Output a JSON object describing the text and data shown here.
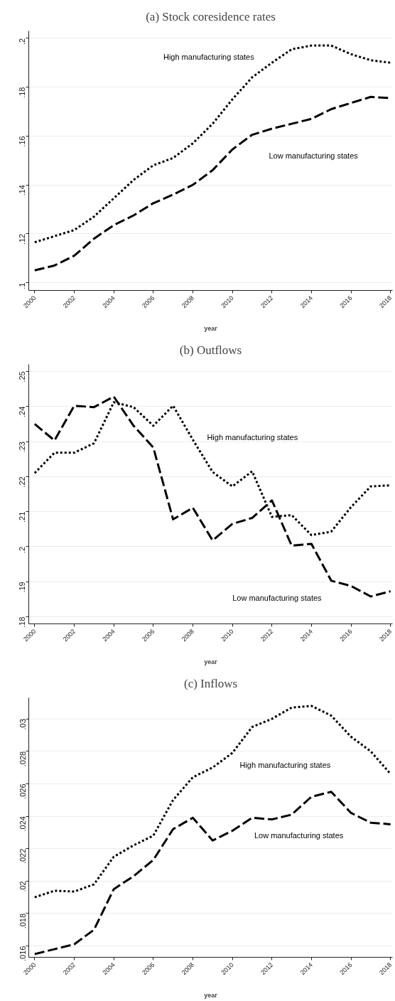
{
  "chart_data": [
    {
      "type": "line",
      "title": "(a) Stock coresidence rates",
      "xlabel": "year",
      "x": [
        2000,
        2001,
        2002,
        2003,
        2004,
        2005,
        2006,
        2007,
        2008,
        2009,
        2010,
        2011,
        2012,
        2013,
        2014,
        2015,
        2016,
        2017,
        2018
      ],
      "series": [
        {
          "name": "High manufacturing states",
          "color": "#000000",
          "line_style": "dotted",
          "values": [
            0.1165,
            0.119,
            0.1215,
            0.127,
            0.1345,
            0.142,
            0.148,
            0.151,
            0.157,
            0.165,
            0.175,
            0.184,
            0.19,
            0.1955,
            0.197,
            0.197,
            0.1935,
            0.191,
            0.19
          ]
        },
        {
          "name": "Low manufacturing states",
          "color": "#000000",
          "line_style": "dashed",
          "values": [
            0.105,
            0.107,
            0.111,
            0.118,
            0.1235,
            0.1275,
            0.1325,
            0.136,
            0.14,
            0.146,
            0.1545,
            0.1605,
            0.163,
            0.165,
            0.167,
            0.171,
            0.1735,
            0.176,
            0.1755
          ]
        }
      ],
      "xlim": [
        1999.7,
        2018.1
      ],
      "ylim": [
        0.0968,
        0.203
      ],
      "xticks": [
        2000,
        2002,
        2004,
        2006,
        2008,
        2010,
        2012,
        2014,
        2016,
        2018
      ],
      "yticks": [
        {
          "value": 0.1,
          "label": ".1"
        },
        {
          "value": 0.12,
          "label": ".12"
        },
        {
          "value": 0.14,
          "label": ".14"
        },
        {
          "value": 0.16,
          "label": ".16"
        },
        {
          "value": 0.18,
          "label": ".18"
        },
        {
          "value": 0.2,
          "label": ".2"
        }
      ],
      "grid": "y"
    },
    {
      "type": "line",
      "title": "(b) Outflows",
      "xlabel": "year",
      "x": [
        2000,
        2001,
        2002,
        2003,
        2004,
        2005,
        2006,
        2007,
        2008,
        2009,
        2010,
        2011,
        2012,
        2013,
        2014,
        2015,
        2016,
        2017,
        2018
      ],
      "series": [
        {
          "name": "High manufacturing states",
          "color": "#000000",
          "line_style": "dotted",
          "values": [
            0.221,
            0.2268,
            0.2268,
            0.2295,
            0.2412,
            0.2398,
            0.2345,
            0.2402,
            0.2305,
            0.2213,
            0.2172,
            0.2215,
            0.2085,
            0.209,
            0.2033,
            0.2043,
            0.2113,
            0.2172,
            0.2175
          ]
        },
        {
          "name": "Low manufacturing states",
          "color": "#000000",
          "line_style": "dashed",
          "values": [
            0.235,
            0.2303,
            0.2402,
            0.2398,
            0.2428,
            0.2345,
            0.2283,
            0.2078,
            0.2111,
            0.2018,
            0.2065,
            0.2082,
            0.2132,
            0.2003,
            0.2008,
            0.1903,
            0.1888,
            0.1858,
            0.1873
          ]
        }
      ],
      "xlim": [
        1999.7,
        2018.1
      ],
      "ylim": [
        0.178,
        0.252
      ],
      "xticks": [
        2000,
        2002,
        2004,
        2006,
        2008,
        2010,
        2012,
        2014,
        2016,
        2018
      ],
      "yticks": [
        {
          "value": 0.18,
          "label": ".18"
        },
        {
          "value": 0.19,
          "label": ".19"
        },
        {
          "value": 0.2,
          "label": ".2"
        },
        {
          "value": 0.21,
          "label": ".21"
        },
        {
          "value": 0.22,
          "label": ".22"
        },
        {
          "value": 0.23,
          "label": ".23"
        },
        {
          "value": 0.24,
          "label": ".24"
        },
        {
          "value": 0.25,
          "label": ".25"
        }
      ],
      "grid": "y"
    },
    {
      "type": "line",
      "title": "(c) Inflows",
      "xlabel": "year",
      "x": [
        2000,
        2001,
        2002,
        2003,
        2004,
        2005,
        2006,
        2007,
        2008,
        2009,
        2010,
        2011,
        2012,
        2013,
        2014,
        2015,
        2016,
        2017,
        2018
      ],
      "series": [
        {
          "name": "High manufacturing states",
          "color": "#000000",
          "line_style": "dotted",
          "values": [
            0.019,
            0.0194,
            0.01935,
            0.0198,
            0.0215,
            0.0222,
            0.0228,
            0.025,
            0.0264,
            0.027,
            0.0279,
            0.0295,
            0.03,
            0.0307,
            0.0308,
            0.0302,
            0.0289,
            0.028,
            0.0266
          ]
        },
        {
          "name": "Low manufacturing states",
          "color": "#000000",
          "line_style": "dashed",
          "values": [
            0.0155,
            0.0158,
            0.0161,
            0.017,
            0.0195,
            0.0203,
            0.0213,
            0.0232,
            0.0239,
            0.0225,
            0.0231,
            0.0239,
            0.0238,
            0.0241,
            0.0252,
            0.0255,
            0.0242,
            0.0236,
            0.0235
          ]
        }
      ],
      "xlim": [
        1999.7,
        2018.1
      ],
      "ylim": [
        0.0153,
        0.0313
      ],
      "xticks": [
        2000,
        2002,
        2004,
        2006,
        2008,
        2010,
        2012,
        2014,
        2016,
        2018
      ],
      "yticks": [
        {
          "value": 0.016,
          "label": ".016"
        },
        {
          "value": 0.018,
          "label": ".018"
        },
        {
          "value": 0.02,
          "label": ".02"
        },
        {
          "value": 0.022,
          "label": ".022"
        },
        {
          "value": 0.024,
          "label": ".024"
        },
        {
          "value": 0.026,
          "label": ".026"
        },
        {
          "value": 0.028,
          "label": ".028"
        },
        {
          "value": 0.03,
          "label": ".03"
        }
      ],
      "grid": "y"
    }
  ]
}
